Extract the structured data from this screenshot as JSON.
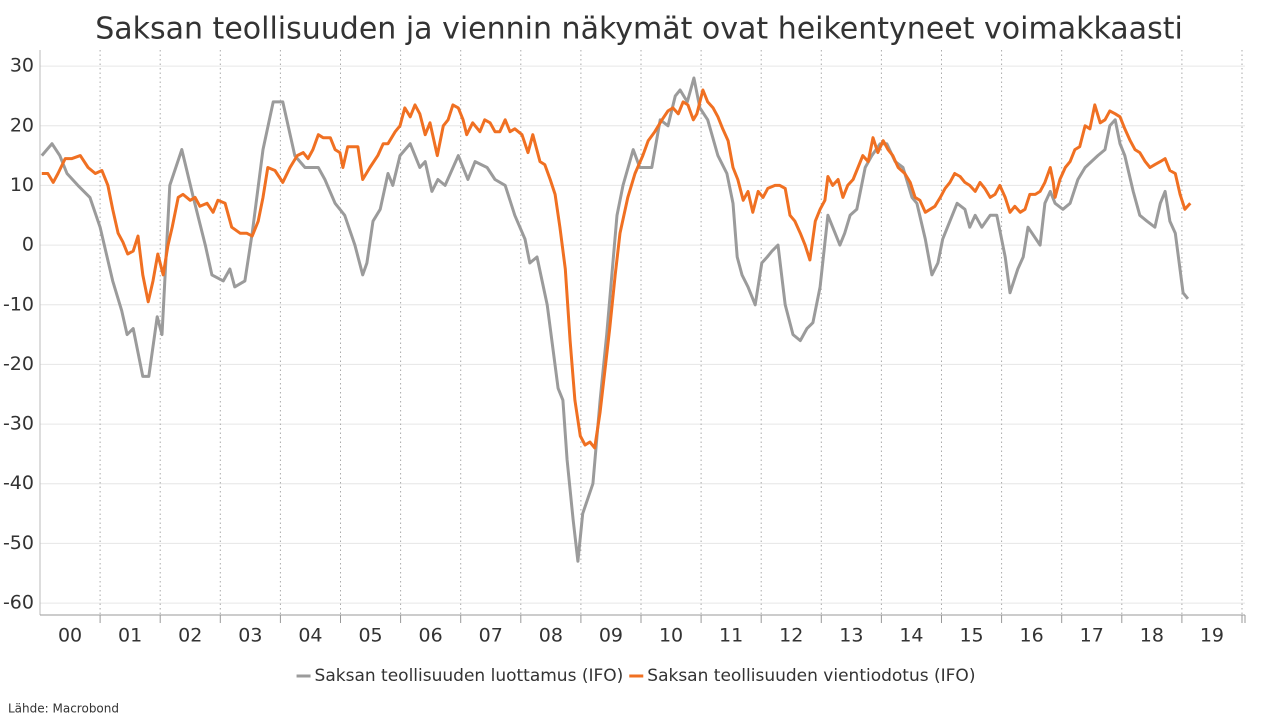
{
  "chart_data": {
    "type": "line",
    "title": "Saksan teollisuuden ja viennin näkymät ovat heikentyneet voimakkaasti",
    "source": "Lähde: Macrobond",
    "xlim": [
      2000,
      2020.05
    ],
    "ylim": [
      -62,
      32.7
    ],
    "yticks": [
      -60,
      -50,
      -40,
      -30,
      -20,
      -10,
      0,
      10,
      20,
      30
    ],
    "xticks": [
      {
        "value": 2000.5,
        "label": "00"
      },
      {
        "value": 2001.5,
        "label": "01"
      },
      {
        "value": 2002.5,
        "label": "02"
      },
      {
        "value": 2003.5,
        "label": "03"
      },
      {
        "value": 2004.5,
        "label": "04"
      },
      {
        "value": 2005.5,
        "label": "05"
      },
      {
        "value": 2006.5,
        "label": "06"
      },
      {
        "value": 2007.5,
        "label": "07"
      },
      {
        "value": 2008.5,
        "label": "08"
      },
      {
        "value": 2009.5,
        "label": "09"
      },
      {
        "value": 2010.5,
        "label": "10"
      },
      {
        "value": 2011.5,
        "label": "11"
      },
      {
        "value": 2012.5,
        "label": "12"
      },
      {
        "value": 2013.5,
        "label": "13"
      },
      {
        "value": 2014.5,
        "label": "14"
      },
      {
        "value": 2015.5,
        "label": "15"
      },
      {
        "value": 2016.5,
        "label": "16"
      },
      {
        "value": 2017.5,
        "label": "17"
      },
      {
        "value": 2018.5,
        "label": "18"
      },
      {
        "value": 2019.5,
        "label": "19"
      }
    ],
    "grid": true,
    "legend": "bottom",
    "series": [
      {
        "name": "Saksan teollisuuden luottamus (IFO)",
        "color": "#9b9b9b",
        "x": [
          2000.03,
          2000.2,
          2000.33,
          2000.45,
          2000.63,
          2000.83,
          2001.0,
          2001.21,
          2001.36,
          2001.45,
          2001.55,
          2001.71,
          2001.81,
          2001.95,
          2002.03,
          2002.16,
          2002.36,
          2002.55,
          2002.75,
          2002.86,
          2003.05,
          2003.16,
          2003.24,
          2003.41,
          2003.53,
          2003.71,
          2003.88,
          2004.04,
          2004.24,
          2004.41,
          2004.63,
          2004.74,
          2004.91,
          2005.07,
          2005.24,
          2005.37,
          2005.44,
          2005.54,
          2005.66,
          2005.79,
          2005.87,
          2005.99,
          2006.16,
          2006.32,
          2006.41,
          2006.52,
          2006.62,
          2006.74,
          2006.96,
          2007.12,
          2007.24,
          2007.44,
          2007.57,
          2007.74,
          2007.9,
          2008.07,
          2008.15,
          2008.27,
          2008.44,
          2008.62,
          2008.7,
          2008.77,
          2008.87,
          2008.95,
          2009.03,
          2009.2,
          2009.32,
          2009.43,
          2009.6,
          2009.7,
          2009.87,
          2009.98,
          2010.18,
          2010.32,
          2010.45,
          2010.57,
          2010.65,
          2010.77,
          2010.88,
          2010.98,
          2011.11,
          2011.28,
          2011.43,
          2011.53,
          2011.6,
          2011.68,
          2011.78,
          2011.9,
          2012.01,
          2012.1,
          2012.18,
          2012.28,
          2012.4,
          2012.53,
          2012.65,
          2012.76,
          2012.86,
          2012.98,
          2013.11,
          2013.19,
          2013.31,
          2013.39,
          2013.48,
          2013.59,
          2013.73,
          2013.84,
          2013.98,
          2014.09,
          2014.23,
          2014.36,
          2014.51,
          2014.59,
          2014.73,
          2014.84,
          2014.94,
          2015.02,
          2015.14,
          2015.26,
          2015.39,
          2015.47,
          2015.56,
          2015.67,
          2015.81,
          2015.92,
          2016.06,
          2016.14,
          2016.27,
          2016.36,
          2016.44,
          2016.64,
          2016.72,
          2016.81,
          2016.89,
          2017.02,
          2017.14,
          2017.27,
          2017.39,
          2017.6,
          2017.72,
          2017.8,
          2017.89,
          2017.97,
          2018.05,
          2018.19,
          2018.3,
          2018.42,
          2018.55,
          2018.64,
          2018.72,
          2018.8,
          2018.89,
          2019.02,
          2019.1
        ],
        "values": [
          15,
          17,
          15,
          12,
          10,
          8,
          3,
          -6,
          -11,
          -15,
          -14,
          -22,
          -22,
          -12,
          -15,
          10,
          16,
          8,
          0,
          -5,
          -6,
          -4,
          -7,
          -6,
          2,
          16,
          24,
          24,
          15,
          13,
          13,
          11,
          7,
          5,
          0,
          -5,
          -3,
          4,
          6,
          12,
          10,
          15,
          17,
          13,
          14,
          9,
          11,
          10,
          15,
          11,
          14,
          13,
          11,
          10,
          5,
          1,
          -3,
          -2,
          -10,
          -24,
          -26,
          -36,
          -46,
          -53,
          -45,
          -40,
          -26,
          -15,
          5,
          10,
          16,
          13,
          13,
          21,
          20,
          25,
          26,
          24,
          28,
          23,
          21,
          15,
          12,
          7,
          -2,
          -5,
          -7,
          -10,
          -3,
          -2,
          -1,
          0,
          -10,
          -15,
          -16,
          -14,
          -13,
          -7,
          5,
          3,
          0,
          2,
          5,
          6,
          13,
          15,
          17,
          17,
          14,
          13,
          8,
          7,
          1,
          -5,
          -3,
          1,
          4,
          7,
          6,
          3,
          5,
          3,
          5,
          5,
          -2,
          -8,
          -4,
          -2,
          3,
          0,
          7,
          9,
          7,
          6,
          7,
          11,
          13,
          15,
          16,
          20,
          21,
          17,
          15,
          9,
          5,
          4,
          3,
          7,
          9,
          4,
          2,
          -8,
          -9
        ]
      },
      {
        "name": "Saksan teollisuuden vientiodotus (IFO)",
        "color": "#f07022",
        "x": [
          2000.03,
          2000.13,
          2000.22,
          2000.3,
          2000.42,
          2000.53,
          2000.67,
          2000.8,
          2000.92,
          2001.03,
          2001.13,
          2001.21,
          2001.3,
          2001.38,
          2001.46,
          2001.55,
          2001.63,
          2001.71,
          2001.8,
          2001.88,
          2001.96,
          2002.05,
          2002.13,
          2002.2,
          2002.3,
          2002.38,
          2002.5,
          2002.58,
          2002.66,
          2002.78,
          2002.88,
          2002.96,
          2003.08,
          2003.19,
          2003.33,
          2003.44,
          2003.53,
          2003.63,
          2003.71,
          2003.79,
          2003.91,
          2004.04,
          2004.16,
          2004.28,
          2004.38,
          2004.46,
          2004.54,
          2004.63,
          2004.71,
          2004.83,
          2004.91,
          2004.99,
          2005.04,
          2005.12,
          2005.29,
          2005.37,
          2005.49,
          2005.62,
          2005.71,
          2005.79,
          2005.91,
          2005.99,
          2006.07,
          2006.16,
          2006.24,
          2006.32,
          2006.41,
          2006.49,
          2006.61,
          2006.71,
          2006.79,
          2006.87,
          2006.96,
          2007.04,
          2007.1,
          2007.2,
          2007.32,
          2007.4,
          2007.49,
          2007.57,
          2007.65,
          2007.74,
          2007.82,
          2007.9,
          2008.02,
          2008.12,
          2008.2,
          2008.32,
          2008.4,
          2008.49,
          2008.57,
          2008.65,
          2008.74,
          2008.82,
          2008.9,
          2008.99,
          2009.07,
          2009.15,
          2009.23,
          2009.32,
          2009.4,
          2009.48,
          2009.57,
          2009.65,
          2009.78,
          2009.9,
          2010.03,
          2010.12,
          2010.23,
          2010.35,
          2010.45,
          2010.53,
          2010.62,
          2010.7,
          2010.78,
          2010.87,
          2010.93,
          2011.03,
          2011.11,
          2011.2,
          2011.28,
          2011.36,
          2011.45,
          2011.53,
          2011.61,
          2011.7,
          2011.78,
          2011.86,
          2011.95,
          2012.03,
          2012.11,
          2012.23,
          2012.31,
          2012.4,
          2012.48,
          2012.56,
          2012.65,
          2012.73,
          2012.81,
          2012.9,
          2012.98,
          2013.06,
          2013.11,
          2013.19,
          2013.28,
          2013.36,
          2013.44,
          2013.53,
          2013.61,
          2013.69,
          2013.78,
          2013.86,
          2013.94,
          2014.03,
          2014.11,
          2014.19,
          2014.28,
          2014.39,
          2014.48,
          2014.56,
          2014.64,
          2014.73,
          2014.81,
          2014.89,
          2014.98,
          2015.06,
          2015.14,
          2015.22,
          2015.31,
          2015.39,
          2015.47,
          2015.56,
          2015.64,
          2015.72,
          2015.81,
          2015.89,
          2015.97,
          2016.06,
          2016.14,
          2016.22,
          2016.31,
          2016.39,
          2016.47,
          2016.56,
          2016.64,
          2016.72,
          2016.81,
          2016.86,
          2016.89,
          2016.97,
          2017.06,
          2017.14,
          2017.22,
          2017.3,
          2017.39,
          2017.47,
          2017.55,
          2017.64,
          2017.72,
          2017.8,
          2017.89,
          2017.97,
          2018.05,
          2018.14,
          2018.22,
          2018.3,
          2018.39,
          2018.47,
          2018.55,
          2018.64,
          2018.72,
          2018.8,
          2018.89,
          2018.97,
          2019.05,
          2019.14
        ],
        "values": [
          12,
          12,
          10.5,
          12,
          14.5,
          14.5,
          15,
          13,
          12,
          12.5,
          10,
          6,
          2,
          0.5,
          -1.5,
          -1,
          1.5,
          -5,
          -9.5,
          -6,
          -1.5,
          -5,
          0,
          3,
          8,
          8.5,
          7.5,
          8,
          6.5,
          7,
          5.5,
          7.5,
          7,
          3,
          2,
          2,
          1.5,
          4,
          8,
          13,
          12.5,
          10.5,
          13,
          15,
          15.5,
          14.5,
          16,
          18.5,
          18,
          18,
          16,
          15.5,
          13,
          16.5,
          16.5,
          11,
          13,
          15,
          17,
          17,
          19,
          20,
          23,
          21.5,
          23.5,
          22,
          18.5,
          20.5,
          15,
          20,
          21,
          23.5,
          23,
          21,
          18.5,
          20.5,
          19,
          21,
          20.5,
          19,
          19,
          21,
          19,
          19.5,
          18.5,
          15.5,
          18.5,
          14,
          13.5,
          11,
          8.5,
          3,
          -4,
          -16,
          -26,
          -32,
          -33.5,
          -33,
          -34,
          -28,
          -21,
          -14,
          -5,
          2,
          8,
          12,
          15,
          17.5,
          19,
          21,
          22.5,
          23,
          22,
          24,
          23.5,
          21,
          22,
          26,
          24,
          23,
          21.5,
          19.5,
          17.5,
          13,
          11,
          7.5,
          9,
          5.5,
          9,
          8,
          9.5,
          10,
          10,
          9.5,
          5,
          4,
          2,
          0,
          -2.5,
          4,
          6,
          7.5,
          11.5,
          10,
          11,
          8,
          10,
          11,
          13,
          15,
          14,
          18,
          15.5,
          17.5,
          16,
          15,
          13,
          12,
          10.5,
          8,
          7.5,
          5.5,
          6,
          6.5,
          8,
          9.5,
          10.5,
          12,
          11.5,
          10.5,
          10,
          9,
          10.5,
          9.5,
          8,
          8.5,
          10,
          8,
          5.5,
          6.5,
          5.5,
          6,
          8.5,
          8.5,
          9,
          10.5,
          13,
          10.5,
          8,
          11,
          13,
          14,
          16,
          16.5,
          20,
          19.5,
          23.5,
          20.5,
          21,
          22.5,
          22,
          21.5,
          19.5,
          17.5,
          16,
          15.5,
          14,
          13,
          13.5,
          14,
          14.5,
          12.5,
          12,
          8.5,
          6,
          7
        ]
      }
    ]
  }
}
